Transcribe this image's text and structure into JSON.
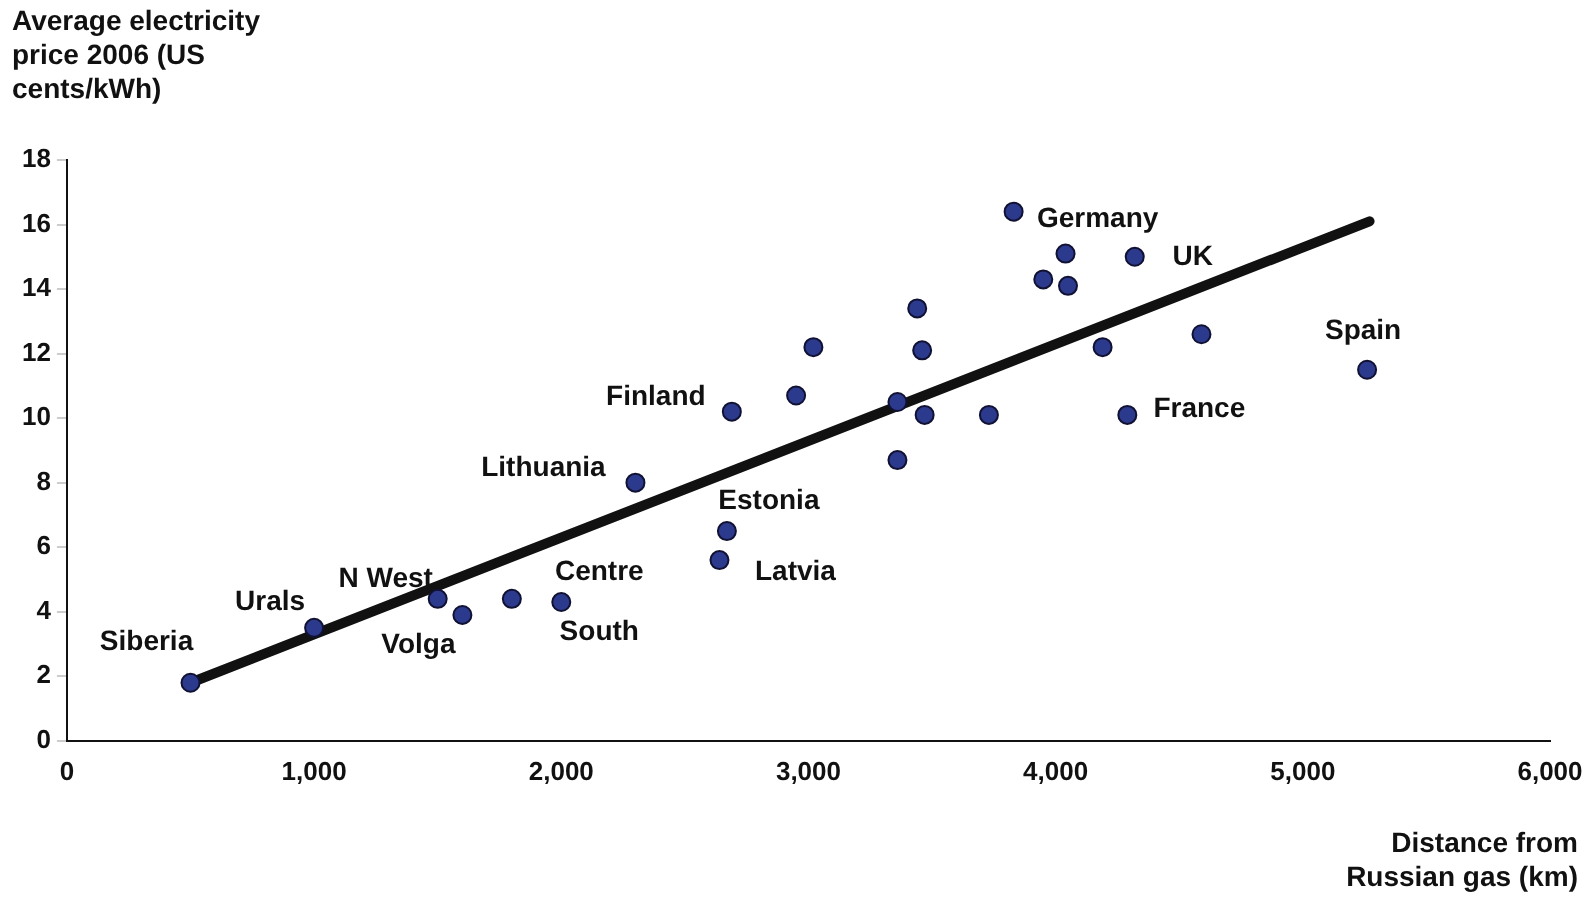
{
  "chart_data": {
    "type": "scatter",
    "xlabel": "Distance from Russian gas (km)",
    "ylabel": "Average electricity price 2006 (US cents/kWh)",
    "xlim": [
      0,
      6000
    ],
    "xticks": [
      {
        "value": 0,
        "label": "0"
      },
      {
        "value": 1000,
        "label": "1,000"
      },
      {
        "value": 2000,
        "label": "2,000"
      },
      {
        "value": 3000,
        "label": "3,000"
      },
      {
        "value": 4000,
        "label": "4,000"
      },
      {
        "value": 5000,
        "label": "5,000"
      },
      {
        "value": 6000,
        "label": "6,000"
      }
    ],
    "ylim": [
      0,
      18
    ],
    "yticks": [
      0,
      2,
      4,
      6,
      8,
      10,
      12,
      14,
      16,
      18
    ],
    "grid": false,
    "legend": false,
    "marker": "circle",
    "series": [
      {
        "color": "#2b3a8c",
        "x": [
          500,
          1000,
          1500,
          1600,
          1800,
          2000,
          2300,
          2670,
          2640,
          2690,
          2950,
          3020,
          3360,
          3360,
          3440,
          3460,
          3470,
          3730,
          3830,
          3950,
          4040,
          4050,
          4190,
          4320,
          4290,
          4590,
          5260
        ],
        "values": [
          1.8,
          3.5,
          4.4,
          3.9,
          4.4,
          4.3,
          8.0,
          6.5,
          5.6,
          10.2,
          10.7,
          12.2,
          8.7,
          10.5,
          13.4,
          12.1,
          10.1,
          10.1,
          16.4,
          14.3,
          15.1,
          14.1,
          12.2,
          15.0,
          10.1,
          12.6,
          11.5
        ]
      },
      {
        "type": "line",
        "color": "#111111",
        "x": [
          500,
          5270
        ],
        "values": [
          1.8,
          16.1
        ],
        "marker": "none"
      }
    ],
    "annotations": [
      {
        "text": "Siberia",
        "x": 500,
        "y": 1.8
      },
      {
        "text": "Urals",
        "x": 1000,
        "y": 3.5
      },
      {
        "text": "N West",
        "x": 1500,
        "y": 4.4
      },
      {
        "text": "Volga",
        "x": 1600,
        "y": 3.9
      },
      {
        "text": "Centre",
        "x": 2000,
        "y": 4.3
      },
      {
        "text": "South",
        "x": 2000,
        "y": 4.3
      },
      {
        "text": "Lithuania",
        "x": 2300,
        "y": 8.0
      },
      {
        "text": "Estonia",
        "x": 2670,
        "y": 6.5
      },
      {
        "text": "Latvia",
        "x": 2640,
        "y": 5.6
      },
      {
        "text": "Finland",
        "x": 2690,
        "y": 10.2
      },
      {
        "text": "Germany",
        "x": 3830,
        "y": 16.4
      },
      {
        "text": "UK",
        "x": 4320,
        "y": 15.0
      },
      {
        "text": "France",
        "x": 4290,
        "y": 10.1
      },
      {
        "text": "Spain",
        "x": 5260,
        "y": 11.5
      }
    ]
  }
}
